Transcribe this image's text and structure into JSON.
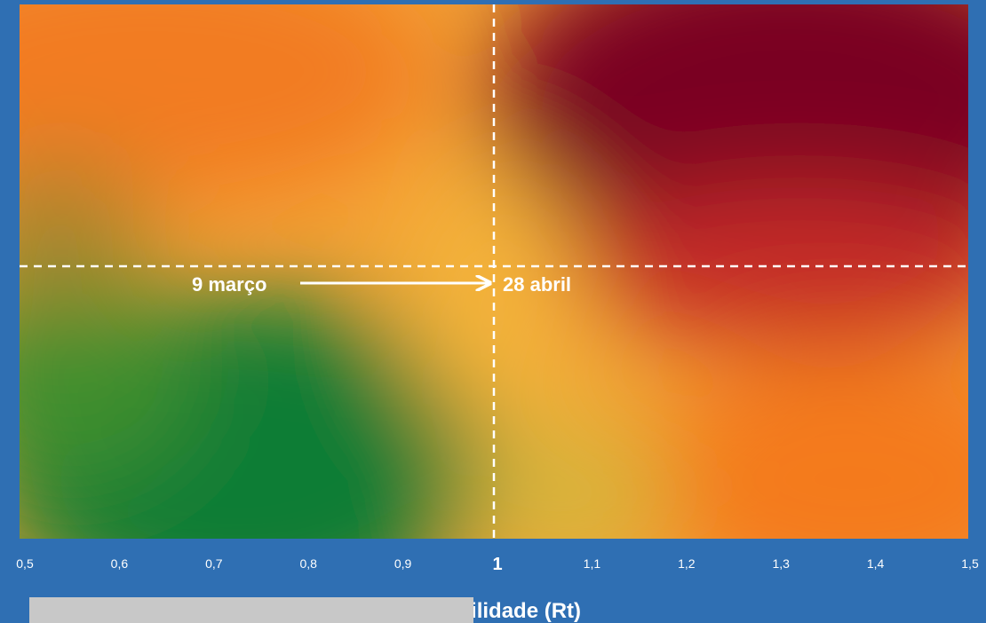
{
  "chart_data": {
    "type": "heatmap",
    "title": "",
    "xlabel": "Transmissibilidade (Rt)",
    "ylabel": "",
    "xlim": [
      0.5,
      1.5
    ],
    "x_ticks": [
      "0,5",
      "0,6",
      "0,7",
      "0,8",
      "0,9",
      "1",
      "1,1",
      "1,2",
      "1,3",
      "1,4",
      "1,5"
    ],
    "x_tick_values": [
      0.5,
      0.6,
      0.7,
      0.8,
      0.9,
      1.0,
      1.1,
      1.2,
      1.3,
      1.4,
      1.5
    ],
    "reference_line_x": 1.0,
    "annotations": [
      {
        "text": "9 março",
        "x": 0.8
      },
      {
        "text": "28 abril",
        "x": 1.0
      }
    ],
    "colors": {
      "green": "#0a7d36",
      "yellow": "#f4b13a",
      "orange": "#f47a1f",
      "red": "#7a0020",
      "background": "#2f6fb3"
    }
  }
}
